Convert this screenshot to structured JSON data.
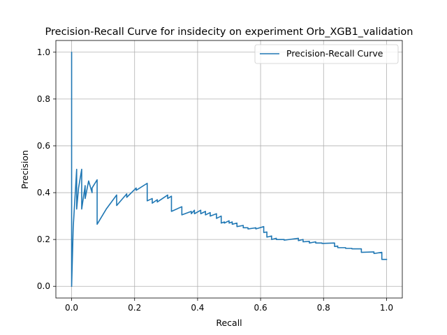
{
  "chart_data": {
    "type": "line",
    "title": "Precision-Recall Curve for insidecity on experiment Orb_XGB1_validation",
    "xlabel": "Recall",
    "ylabel": "Precision",
    "xlim": [
      -0.05,
      1.05
    ],
    "ylim": [
      -0.05,
      1.05
    ],
    "xticks": [
      0.0,
      0.2,
      0.4,
      0.6,
      0.8,
      1.0
    ],
    "yticks": [
      0.0,
      0.2,
      0.4,
      0.6,
      0.8,
      1.0
    ],
    "xtick_labels": [
      "0.0",
      "0.2",
      "0.4",
      "0.6",
      "0.8",
      "1.0"
    ],
    "ytick_labels": [
      "0.0",
      "0.2",
      "0.4",
      "0.6",
      "0.8",
      "1.0"
    ],
    "grid": true,
    "legend_position": "top-right",
    "series": [
      {
        "name": "Precision-Recall Curve",
        "color": "#1f77b4",
        "x": [
          0.0,
          0.0,
          0.0,
          0.005,
          0.016,
          0.016,
          0.022,
          0.032,
          0.032,
          0.043,
          0.043,
          0.054,
          0.065,
          0.065,
          0.081,
          0.081,
          0.11,
          0.143,
          0.143,
          0.175,
          0.175,
          0.205,
          0.205,
          0.24,
          0.24,
          0.256,
          0.256,
          0.272,
          0.272,
          0.305,
          0.305,
          0.317,
          0.317,
          0.35,
          0.35,
          0.38,
          0.38,
          0.39,
          0.39,
          0.41,
          0.41,
          0.425,
          0.425,
          0.44,
          0.44,
          0.46,
          0.46,
          0.475,
          0.475,
          0.485,
          0.485,
          0.5,
          0.5,
          0.51,
          0.51,
          0.525,
          0.525,
          0.545,
          0.545,
          0.56,
          0.56,
          0.585,
          0.585,
          0.61,
          0.61,
          0.62,
          0.62,
          0.635,
          0.635,
          0.65,
          0.65,
          0.675,
          0.675,
          0.72,
          0.72,
          0.735,
          0.735,
          0.755,
          0.755,
          0.775,
          0.775,
          0.795,
          0.795,
          0.835,
          0.835,
          0.845,
          0.845,
          0.87,
          0.87,
          0.89,
          0.89,
          0.92,
          0.92,
          0.96,
          0.96,
          0.985,
          0.985,
          1.0
        ],
        "y": [
          0.0,
          1.0,
          0.0,
          0.25,
          0.5,
          0.33,
          0.42,
          0.5,
          0.33,
          0.43,
          0.375,
          0.45,
          0.4,
          0.42,
          0.455,
          0.265,
          0.33,
          0.39,
          0.345,
          0.395,
          0.38,
          0.42,
          0.41,
          0.44,
          0.365,
          0.375,
          0.355,
          0.37,
          0.36,
          0.39,
          0.375,
          0.385,
          0.32,
          0.34,
          0.305,
          0.32,
          0.31,
          0.325,
          0.31,
          0.325,
          0.31,
          0.32,
          0.305,
          0.315,
          0.3,
          0.31,
          0.29,
          0.3,
          0.27,
          0.275,
          0.27,
          0.28,
          0.27,
          0.275,
          0.265,
          0.27,
          0.255,
          0.26,
          0.25,
          0.25,
          0.245,
          0.25,
          0.245,
          0.255,
          0.23,
          0.232,
          0.21,
          0.215,
          0.2,
          0.205,
          0.2,
          0.2,
          0.197,
          0.205,
          0.195,
          0.2,
          0.19,
          0.192,
          0.185,
          0.19,
          0.185,
          0.185,
          0.183,
          0.185,
          0.17,
          0.172,
          0.165,
          0.165,
          0.162,
          0.162,
          0.16,
          0.16,
          0.145,
          0.147,
          0.14,
          0.145,
          0.115,
          0.115
        ]
      }
    ]
  }
}
